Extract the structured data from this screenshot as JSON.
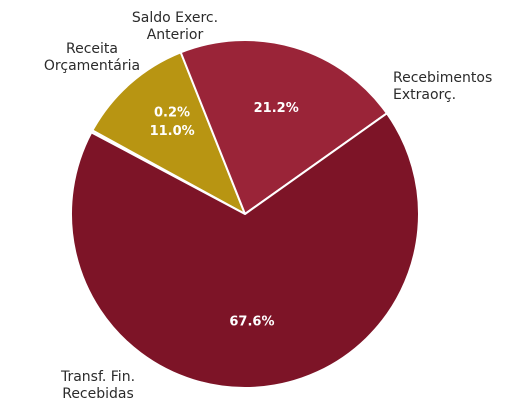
{
  "chart_data": {
    "type": "pie",
    "title": "",
    "slices": [
      {
        "label": "Receita Orçamentária",
        "label_lines": [
          "Receita",
          "Orçamentária"
        ],
        "value": 0.2,
        "pct_text": "0.2%",
        "color": "#2e4d80"
      },
      {
        "label": "Saldo Exerc. Anterior",
        "label_lines": [
          "Saldo Exerc.",
          "Anterior"
        ],
        "value": 11.0,
        "pct_text": "11.0%",
        "color": "#b89512"
      },
      {
        "label": "Recebimentos Extraorç.",
        "label_lines": [
          "Recebimentos",
          "Extraorç."
        ],
        "value": 21.2,
        "pct_text": "21.2%",
        "color": "#9a2438"
      },
      {
        "label": "Transf. Fin. Recebidas",
        "label_lines": [
          "Transf. Fin.",
          "Recebidas"
        ],
        "value": 67.6,
        "pct_text": "67.6%",
        "color": "#7d1427"
      }
    ],
    "legend": "none",
    "slice_edge_color": "#ffffff"
  }
}
